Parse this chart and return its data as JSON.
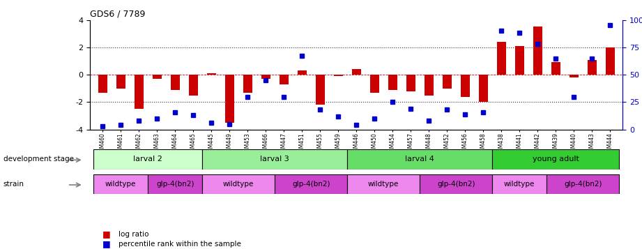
{
  "title": "GDS6 / 7789",
  "gsm_labels": [
    "GSM460",
    "GSM461",
    "GSM462",
    "GSM463",
    "GSM464",
    "GSM465",
    "GSM445",
    "GSM449",
    "GSM453",
    "GSM466",
    "GSM447",
    "GSM451",
    "GSM455",
    "GSM459",
    "GSM446",
    "GSM450",
    "GSM454",
    "GSM457",
    "GSM448",
    "GSM452",
    "GSM456",
    "GSM458",
    "GSM438",
    "GSM441",
    "GSM442",
    "GSM439",
    "GSM440",
    "GSM443",
    "GSM444"
  ],
  "log_ratio": [
    -1.3,
    -1.0,
    -2.5,
    -0.3,
    -1.1,
    -1.5,
    0.1,
    -3.5,
    -1.3,
    -0.3,
    -0.7,
    0.3,
    -2.2,
    -0.1,
    0.4,
    -1.3,
    -1.1,
    -1.2,
    -1.5,
    -1.0,
    -1.6,
    -2.0,
    2.4,
    2.1,
    3.5,
    0.9,
    -0.2,
    1.1,
    2.0
  ],
  "percentile_rank": [
    3,
    4,
    8,
    10,
    16,
    13,
    6,
    5,
    30,
    45,
    30,
    67,
    18,
    12,
    4,
    10,
    25,
    19,
    8,
    18,
    14,
    16,
    90,
    88,
    78,
    65,
    30,
    65,
    95
  ],
  "development_stages": [
    {
      "label": "larval 2",
      "start": 0,
      "end": 6,
      "color": "#ccffcc"
    },
    {
      "label": "larval 3",
      "start": 6,
      "end": 14,
      "color": "#99ee99"
    },
    {
      "label": "larval 4",
      "start": 14,
      "end": 22,
      "color": "#66dd66"
    },
    {
      "label": "young adult",
      "start": 22,
      "end": 29,
      "color": "#33cc33"
    }
  ],
  "strains": [
    {
      "label": "wildtype",
      "start": 0,
      "end": 3,
      "color": "#ee88ee"
    },
    {
      "label": "glp-4(bn2)",
      "start": 3,
      "end": 6,
      "color": "#cc44cc"
    },
    {
      "label": "wildtype",
      "start": 6,
      "end": 10,
      "color": "#ee88ee"
    },
    {
      "label": "glp-4(bn2)",
      "start": 10,
      "end": 14,
      "color": "#cc44cc"
    },
    {
      "label": "wildtype",
      "start": 14,
      "end": 18,
      "color": "#ee88ee"
    },
    {
      "label": "glp-4(bn2)",
      "start": 18,
      "end": 22,
      "color": "#cc44cc"
    },
    {
      "label": "wildtype",
      "start": 22,
      "end": 25,
      "color": "#ee88ee"
    },
    {
      "label": "glp-4(bn2)",
      "start": 25,
      "end": 29,
      "color": "#cc44cc"
    }
  ],
  "ylim_left": [
    -4,
    4
  ],
  "ylim_right": [
    0,
    100
  ],
  "bar_color": "#cc0000",
  "dot_color": "#0000cc",
  "hline_color": "#cc0000",
  "dotted_line_color": "#333333",
  "background_color": "#ffffff"
}
